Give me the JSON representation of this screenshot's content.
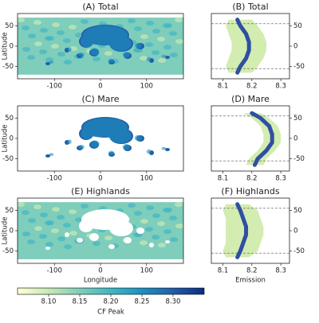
{
  "chart_data": [
    {
      "type": "map",
      "title": "(A) Total",
      "ylabel": "Latitude",
      "xlim": [
        -180,
        180
      ],
      "ylim": [
        -80,
        80
      ],
      "xticks": [
        -100,
        0,
        100
      ],
      "yticks": [
        50,
        0,
        -50
      ],
      "style": "total"
    },
    {
      "type": "profile",
      "title": "(B) Total",
      "xlim": [
        8.06,
        8.33
      ],
      "ylim": [
        -80,
        80
      ],
      "xticks": [
        8.1,
        8.2,
        8.3
      ],
      "yticks": [
        50,
        0,
        -50
      ],
      "hlines": [
        -55,
        55
      ],
      "color": "#2f4fa3",
      "band_color": "#d3ecb0",
      "y": [
        -65,
        -50,
        -30,
        -10,
        10,
        30,
        50,
        65
      ],
      "values": [
        8.15,
        8.16,
        8.18,
        8.19,
        8.19,
        8.18,
        8.16,
        8.15
      ],
      "lower": [
        8.12,
        8.11,
        8.12,
        8.13,
        8.13,
        8.12,
        8.11,
        8.12
      ],
      "upper": [
        8.2,
        8.22,
        8.24,
        8.25,
        8.25,
        8.24,
        8.22,
        8.2
      ]
    },
    {
      "type": "map",
      "title": "(C) Mare",
      "ylabel": "Latitude",
      "xlim": [
        -180,
        180
      ],
      "ylim": [
        -80,
        80
      ],
      "xticks": [
        -100,
        0,
        100
      ],
      "yticks": [
        50,
        0,
        -50
      ],
      "style": "mare"
    },
    {
      "type": "profile",
      "title": "(D) Mare",
      "xlim": [
        8.06,
        8.33
      ],
      "ylim": [
        -80,
        80
      ],
      "xticks": [
        8.1,
        8.2,
        8.3
      ],
      "yticks": [
        50,
        0,
        -50
      ],
      "hlines": [
        -55,
        55
      ],
      "color": "#2f4fa3",
      "band_color": "#d3ecb0",
      "y": [
        -65,
        -50,
        -30,
        -10,
        10,
        30,
        50,
        62
      ],
      "values": [
        8.21,
        8.22,
        8.25,
        8.27,
        8.27,
        8.26,
        8.23,
        8.2
      ],
      "lower": [
        8.18,
        8.19,
        8.22,
        8.24,
        8.24,
        8.23,
        8.2,
        8.17
      ],
      "upper": [
        8.24,
        8.25,
        8.28,
        8.3,
        8.3,
        8.29,
        8.26,
        8.23
      ]
    },
    {
      "type": "map",
      "title": "(E) Highlands",
      "xlabel": "Longitude",
      "ylabel": "Latitude",
      "xlim": [
        -180,
        180
      ],
      "ylim": [
        -80,
        80
      ],
      "xticks": [
        -100,
        0,
        100
      ],
      "yticks": [
        50,
        0,
        -50
      ],
      "style": "highlands"
    },
    {
      "type": "profile",
      "title": "(F) Highlands",
      "xlabel": "Emission",
      "xlim": [
        8.06,
        8.33
      ],
      "ylim": [
        -80,
        80
      ],
      "xticks": [
        8.1,
        8.2,
        8.3
      ],
      "yticks": [
        50,
        0,
        -50
      ],
      "hlines": [
        -55,
        55
      ],
      "color": "#2f4fa3",
      "band_color": "#d3ecb0",
      "y": [
        -65,
        -50,
        -30,
        -10,
        10,
        30,
        50,
        65
      ],
      "values": [
        8.15,
        8.16,
        8.17,
        8.18,
        8.18,
        8.17,
        8.16,
        8.15
      ],
      "lower": [
        8.11,
        8.1,
        8.11,
        8.11,
        8.11,
        8.11,
        8.1,
        8.11
      ],
      "upper": [
        8.19,
        8.22,
        8.23,
        8.24,
        8.24,
        8.23,
        8.22,
        8.19
      ]
    },
    {
      "type": "colorbar",
      "label": "CF Peak",
      "xlim": [
        8.05,
        8.35
      ],
      "xticks": [
        {
          "value": 8.1,
          "label": "8.10"
        },
        {
          "value": 8.15,
          "label": "8.15"
        },
        {
          "value": 8.2,
          "label": "8.20"
        },
        {
          "value": 8.25,
          "label": "8.25"
        },
        {
          "value": 8.3,
          "label": "8.30"
        }
      ],
      "colors": [
        "#ffffd9",
        "#c7e9b4",
        "#7fcdbb",
        "#41b6c4",
        "#1d91c0",
        "#225ea8",
        "#0c2c84"
      ]
    }
  ]
}
